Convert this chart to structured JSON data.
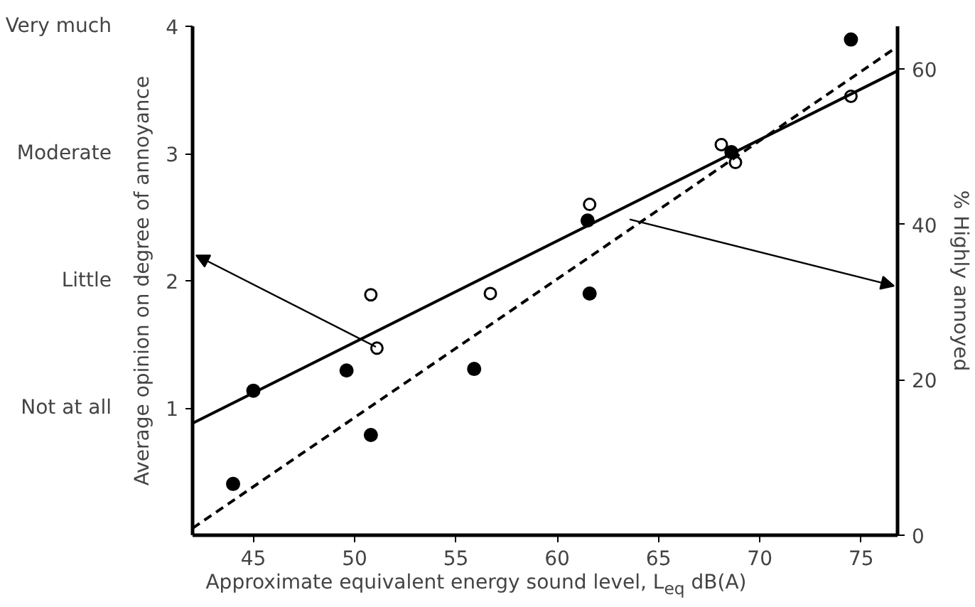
{
  "chart_data": {
    "type": "scatter",
    "xlabel": "Approximate equivalent energy sound level, L$_{eq}$ dB(A)",
    "ylabel": "Average opinion on degree of annoyance",
    "y2label": "% Highly annoyed",
    "xlim": [
      42.0,
      76.8
    ],
    "xticks": [
      45,
      50,
      55,
      60,
      65,
      70,
      75
    ],
    "ylim": [
      0,
      4
    ],
    "yticks": [
      1,
      2,
      3,
      4
    ],
    "annotations": [
      "Not at all",
      "Little",
      "Moderate",
      "Very much"
    ],
    "y2lim": [
      0,
      65.5
    ],
    "y2ticks": [
      0,
      20,
      40,
      60
    ],
    "grid": false,
    "series": [
      {
        "marker": "circle_open",
        "color": "#000000",
        "x": [
          50.8,
          51.1,
          56.7,
          61.6,
          68.1,
          68.8,
          74.5
        ],
        "values": [
          1.89,
          1.47,
          1.9,
          2.6,
          3.07,
          2.93,
          3.45
        ]
      },
      {
        "marker": "circle",
        "axis": "y2",
        "color": "#000000",
        "x": [
          44.0,
          45.0,
          49.6,
          50.8,
          55.9,
          61.5,
          61.6,
          68.6,
          74.5
        ],
        "values": [
          6.6,
          18.6,
          21.2,
          12.9,
          21.4,
          40.5,
          31.1,
          49.3,
          63.8
        ]
      },
      {
        "type": "line",
        "line_style": "solid",
        "color": "#000000",
        "x": [
          42.0,
          76.8
        ],
        "values": [
          0.88,
          3.65
        ]
      },
      {
        "type": "line",
        "line_style": "dashed",
        "axis": "y2",
        "color": "#000000",
        "x": [
          42.0,
          76.8
        ],
        "values": [
          0.9,
          62.9
        ]
      }
    ]
  }
}
